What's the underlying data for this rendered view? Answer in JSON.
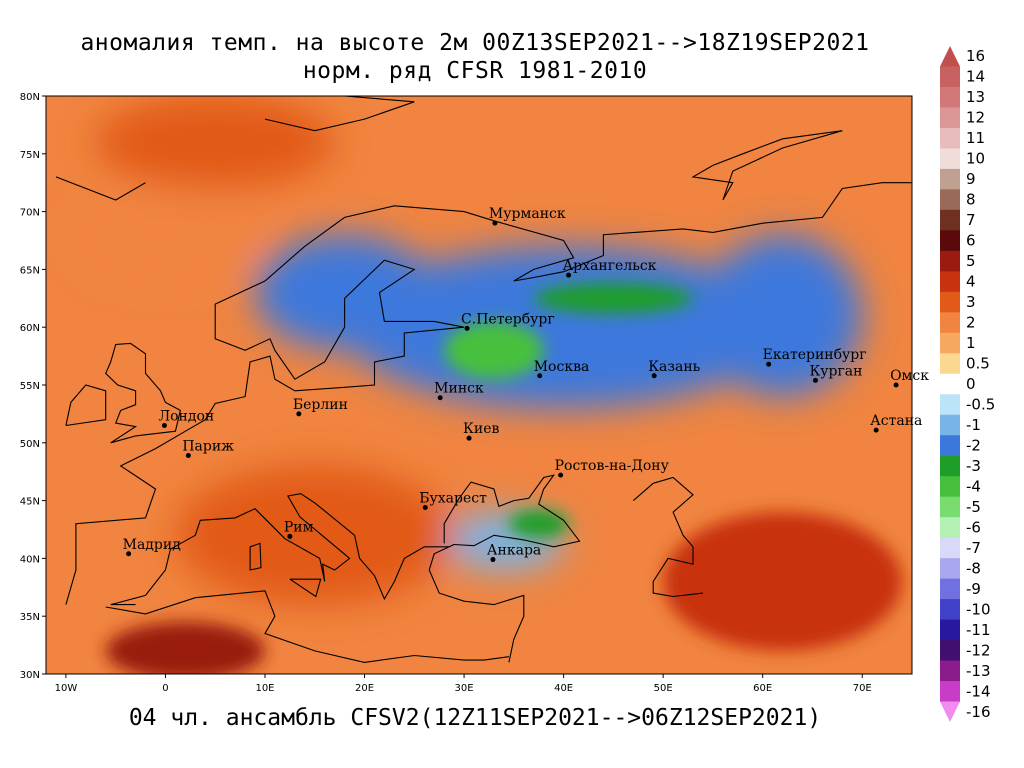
{
  "title": {
    "line1": "аномалия темп. на высоте 2м 00Z13SEP2021-->18Z19SEP2021",
    "line2": "норм. ряд CFSR 1981-2010"
  },
  "footer": "04 чл. ансамбль CFSV2(12Z11SEP2021-->06Z12SEP2021)",
  "map": {
    "lon_range": [
      -12,
      75
    ],
    "lat_range": [
      30,
      80
    ],
    "lon_ticks": [
      {
        "value": -10,
        "label": "10W"
      },
      {
        "value": 0,
        "label": "0"
      },
      {
        "value": 10,
        "label": "10E"
      },
      {
        "value": 20,
        "label": "20E"
      },
      {
        "value": 30,
        "label": "30E"
      },
      {
        "value": 40,
        "label": "40E"
      },
      {
        "value": 50,
        "label": "50E"
      },
      {
        "value": 60,
        "label": "60E"
      },
      {
        "value": 70,
        "label": "70E"
      }
    ],
    "lat_ticks": [
      {
        "value": 80,
        "label": "80N"
      },
      {
        "value": 75,
        "label": "75N"
      },
      {
        "value": 70,
        "label": "70N"
      },
      {
        "value": 65,
        "label": "65N"
      },
      {
        "value": 60,
        "label": "60N"
      },
      {
        "value": 55,
        "label": "55N"
      },
      {
        "value": 50,
        "label": "50N"
      },
      {
        "value": 45,
        "label": "45N"
      },
      {
        "value": 40,
        "label": "40N"
      },
      {
        "value": 35,
        "label": "35N"
      },
      {
        "value": 30,
        "label": "30N"
      }
    ],
    "cities": [
      {
        "name": "Мурманск",
        "lon": 33.1,
        "lat": 69.0
      },
      {
        "name": "Архангельск",
        "lon": 40.5,
        "lat": 64.5
      },
      {
        "name": "С.Петербург",
        "lon": 30.3,
        "lat": 59.9
      },
      {
        "name": "Москва",
        "lon": 37.6,
        "lat": 55.8
      },
      {
        "name": "Казань",
        "lon": 49.1,
        "lat": 55.8
      },
      {
        "name": "Екатеринбург",
        "lon": 60.6,
        "lat": 56.8
      },
      {
        "name": "Курган",
        "lon": 65.3,
        "lat": 55.4
      },
      {
        "name": "Омск",
        "lon": 73.4,
        "lat": 55.0
      },
      {
        "name": "Астана",
        "lon": 71.4,
        "lat": 51.1
      },
      {
        "name": "Минск",
        "lon": 27.6,
        "lat": 53.9
      },
      {
        "name": "Киев",
        "lon": 30.5,
        "lat": 50.4
      },
      {
        "name": "Берлин",
        "lon": 13.4,
        "lat": 52.5
      },
      {
        "name": "Лондон",
        "lon": -0.1,
        "lat": 51.5
      },
      {
        "name": "Париж",
        "lon": 2.3,
        "lat": 48.9
      },
      {
        "name": "Ростов-на-Дону",
        "lon": 39.7,
        "lat": 47.2
      },
      {
        "name": "Бухарест",
        "lon": 26.1,
        "lat": 44.4
      },
      {
        "name": "Рим",
        "lon": 12.5,
        "lat": 41.9
      },
      {
        "name": "Анкара",
        "lon": 32.9,
        "lat": 39.9
      },
      {
        "name": "Мадрид",
        "lon": -3.7,
        "lat": 40.4
      }
    ],
    "anomaly_regions": [
      {
        "desc": "cold core Russia",
        "lon": 40,
        "lat": 60,
        "rlon": 22,
        "rlat": 7,
        "value": -2.5
      },
      {
        "desc": "cold Scandinavia",
        "lon": 18,
        "lat": 63,
        "rlon": 9,
        "rlat": 5,
        "value": -2.0
      },
      {
        "desc": "cold Urals",
        "lon": 62,
        "lat": 61,
        "rlon": 8,
        "rlat": 7,
        "value": -2.0
      },
      {
        "desc": "very cold Moscow",
        "lon": 33,
        "lat": 58,
        "rlon": 5,
        "rlat": 2.5,
        "value": -4.0
      },
      {
        "desc": "very cold northwest",
        "lon": 45,
        "lat": 62.5,
        "rlon": 8,
        "rlat": 1.3,
        "value": -3.5
      },
      {
        "desc": "very cold Black Sea",
        "lon": 37.5,
        "lat": 43,
        "rlon": 3,
        "rlat": 1.2,
        "value": -3.5
      },
      {
        "desc": "cold Turkey",
        "lon": 34,
        "lat": 41.5,
        "rlon": 6,
        "rlat": 2.5,
        "value": -1.5
      },
      {
        "desc": "warm Mediterranean",
        "lon": 15,
        "lat": 42,
        "rlon": 14,
        "rlat": 6,
        "value": 3.0
      },
      {
        "desc": "warm Sahara",
        "lon": 2,
        "lat": 32,
        "rlon": 8,
        "rlat": 2.5,
        "value": 5.0
      },
      {
        "desc": "warm Central Asia",
        "lon": 62,
        "lat": 38,
        "rlon": 12,
        "rlat": 6,
        "value": 4.0
      },
      {
        "desc": "warm Arctic",
        "lon": 5,
        "lat": 76,
        "rlon": 12,
        "rlat": 4,
        "value": 3.0
      },
      {
        "desc": "warm Greenland",
        "lon": 0,
        "lat": 68,
        "rlon": 9,
        "rlat": 4,
        "value": 2.0
      }
    ]
  },
  "colorbar": {
    "items": [
      {
        "label": "16",
        "color": "#c0504d"
      },
      {
        "label": "14",
        "color": "#c86262"
      },
      {
        "label": "13",
        "color": "#d27878"
      },
      {
        "label": "12",
        "color": "#dc9696"
      },
      {
        "label": "11",
        "color": "#e8bcbc"
      },
      {
        "label": "10",
        "color": "#f0dcd8"
      },
      {
        "label": "9",
        "color": "#c0a090"
      },
      {
        "label": "8",
        "color": "#9a6a58"
      },
      {
        "label": "7",
        "color": "#6e3020"
      },
      {
        "label": "6",
        "color": "#5a0a0a"
      },
      {
        "label": "5",
        "color": "#9a1c10"
      },
      {
        "label": "4",
        "color": "#c83210"
      },
      {
        "label": "3",
        "color": "#e25a18"
      },
      {
        "label": "2",
        "color": "#f08440"
      },
      {
        "label": "1",
        "color": "#f6a860"
      },
      {
        "label": "0.5",
        "color": "#fad890"
      },
      {
        "label": "0",
        "color": "#ffffff"
      },
      {
        "label": "-0.5",
        "color": "#bce4f8"
      },
      {
        "label": "-1",
        "color": "#78b4e8"
      },
      {
        "label": "-2",
        "color": "#3c78dc"
      },
      {
        "label": "-3",
        "color": "#1e9e28"
      },
      {
        "label": "-4",
        "color": "#46c03c"
      },
      {
        "label": "-5",
        "color": "#78dc6e"
      },
      {
        "label": "-6",
        "color": "#b4f0b4"
      },
      {
        "label": "-7",
        "color": "#d8d8f8"
      },
      {
        "label": "-8",
        "color": "#a8a8f0"
      },
      {
        "label": "-9",
        "color": "#7070e0"
      },
      {
        "label": "-10",
        "color": "#4040c8"
      },
      {
        "label": "-11",
        "color": "#2818a0"
      },
      {
        "label": "-12",
        "color": "#401070"
      },
      {
        "label": "-13",
        "color": "#8c1c8c"
      },
      {
        "label": "-14",
        "color": "#c83cc8"
      },
      {
        "label": "-16",
        "color": "#f08cf0"
      }
    ]
  }
}
